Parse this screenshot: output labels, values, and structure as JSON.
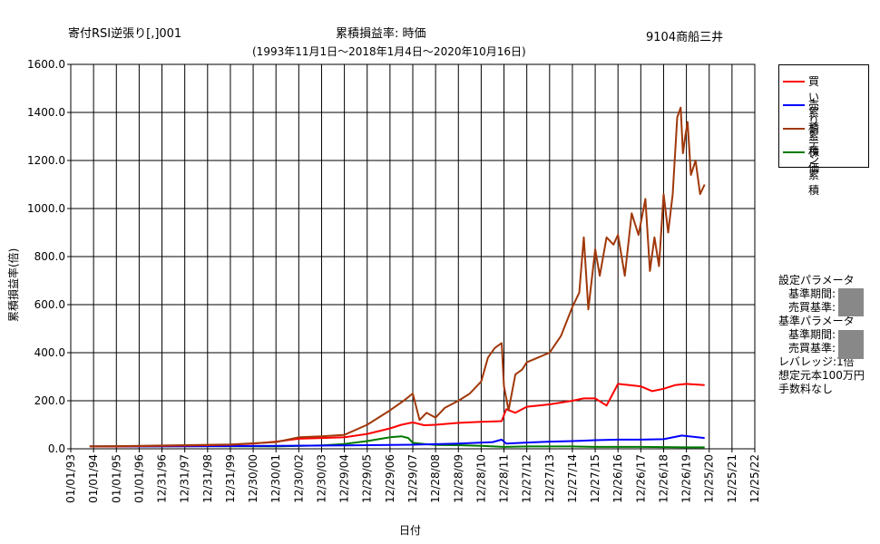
{
  "header": {
    "strategy": "寄付RSI逆張り[,]001",
    "metric": "累積損益率:  時価",
    "stock": "9104商船三井",
    "period": "(1993年11月1日～2018年1月4日～2020年10月16日)"
  },
  "chart_data": {
    "type": "line",
    "title": "累積損益率:  時価",
    "xlabel": "日付",
    "ylabel": "累積損益率(倍)",
    "ylim": [
      0,
      1600
    ],
    "y_ticks": [
      "0.0",
      "200.0",
      "400.0",
      "600.0",
      "800.0",
      "1000.0",
      "1200.0",
      "1400.0",
      "1600.0"
    ],
    "x_ticks": [
      "01/01/93",
      "01/01/94",
      "01/01/95",
      "01/01/96",
      "12/31/96",
      "12/31/97",
      "12/31/98",
      "12/31/99",
      "12/30/00",
      "12/30/01",
      "12/30/02",
      "12/30/03",
      "12/29/04",
      "12/29/05",
      "12/29/06",
      "12/29/07",
      "12/28/08",
      "12/28/09",
      "12/28/10",
      "12/28/11",
      "12/27/12",
      "12/27/13",
      "12/27/14",
      "12/27/15",
      "12/26/16",
      "12/26/17",
      "12/26/18",
      "12/26/19",
      "12/25/20",
      "12/25/21",
      "12/25/22"
    ],
    "grid": true,
    "legend_position": "right",
    "series": [
      {
        "name": "買い累積",
        "color": "#ff0000",
        "x": [
          1993.83,
          1995,
          1997,
          1999,
          2000,
          2001,
          2002,
          2003,
          2004,
          2005,
          2006,
          2007,
          2007.5,
          2008,
          2008.5,
          2009,
          2010,
          2011,
          2011.9,
          2012.1,
          2012.5,
          2013,
          2014,
          2015,
          2015.5,
          2016,
          2016.5,
          2017,
          2017.5,
          2018,
          2018.5,
          2019,
          2019.5,
          2020,
          2020.8
        ],
        "values": [
          10,
          10,
          12,
          15,
          17,
          22,
          30,
          42,
          45,
          48,
          62,
          85,
          100,
          110,
          98,
          100,
          108,
          112,
          115,
          165,
          150,
          175,
          185,
          200,
          210,
          210,
          180,
          270,
          265,
          260,
          240,
          250,
          265,
          270,
          265
        ]
      },
      {
        "name": "売り累積",
        "color": "#0000ff",
        "x": [
          1993.83,
          1996,
          1999,
          2002,
          2005,
          2008,
          2010,
          2011.5,
          2011.9,
          2012.1,
          2013,
          2014,
          2015,
          2016,
          2017,
          2018,
          2019,
          2019.8,
          2020.8
        ],
        "values": [
          10,
          10,
          11,
          12,
          14,
          17,
          22,
          28,
          38,
          22,
          26,
          30,
          32,
          36,
          38,
          38,
          40,
          55,
          45
        ]
      },
      {
        "name": "ドテン累積",
        "color": "#a0380a",
        "x": [
          1993.83,
          1996,
          1998,
          2000,
          2002,
          2003,
          2004,
          2005,
          2006,
          2007,
          2007.6,
          2008,
          2008.3,
          2008.6,
          2009,
          2009.4,
          2010,
          2010.5,
          2011,
          2011.3,
          2011.6,
          2011.9,
          2012.0,
          2012.2,
          2012.5,
          2012.8,
          2013,
          2013.5,
          2014,
          2014.5,
          2015,
          2015.3,
          2015.5,
          2015.7,
          2016,
          2016.2,
          2016.5,
          2016.8,
          2017,
          2017.3,
          2017.6,
          2017.9,
          2018.2,
          2018.4,
          2018.6,
          2018.8,
          2019,
          2019.2,
          2019.4,
          2019.6,
          2019.75,
          2019.85,
          2019.95,
          2020.05,
          2020.2,
          2020.4,
          2020.6,
          2020.8
        ],
        "values": [
          10,
          12,
          15,
          18,
          28,
          48,
          52,
          58,
          100,
          160,
          200,
          230,
          120,
          150,
          130,
          170,
          200,
          230,
          280,
          380,
          420,
          440,
          260,
          160,
          310,
          330,
          360,
          380,
          400,
          470,
          590,
          650,
          880,
          580,
          830,
          720,
          880,
          850,
          890,
          720,
          980,
          890,
          1040,
          740,
          880,
          760,
          1060,
          900,
          1060,
          1380,
          1420,
          1230,
          1300,
          1360,
          1140,
          1200,
          1060,
          1100
        ]
      },
      {
        "name": "株価",
        "color": "#007a00",
        "x": [
          1993.83,
          1996,
          1999,
          2002,
          2004,
          2005,
          2006,
          2006.5,
          2007,
          2007.5,
          2007.8,
          2008,
          2008.5,
          2009,
          2010,
          2011,
          2012,
          2013,
          2014,
          2015,
          2016,
          2017,
          2018,
          2019,
          2020,
          2020.8
        ],
        "values": [
          10,
          10,
          11,
          10,
          14,
          20,
          32,
          40,
          48,
          52,
          45,
          25,
          20,
          16,
          15,
          12,
          8,
          10,
          10,
          10,
          8,
          8,
          8,
          7,
          6,
          6
        ]
      }
    ]
  },
  "legend": {
    "items": [
      {
        "label": "買い累積",
        "color": "#ff0000"
      },
      {
        "label": "売り累積",
        "color": "#0000ff"
      },
      {
        "label": "ドテン累積",
        "color": "#a0380a"
      },
      {
        "label": "株価",
        "color": "#007a00"
      }
    ]
  },
  "params": {
    "setting_header": "設定パラメータ",
    "base_period_1": "基準期間:",
    "trade_criteria_1": "売買基準:",
    "base_header": "基準パラメータ",
    "base_period_2": "基準期間:",
    "trade_criteria_2": "売買基準:",
    "leverage": "レバレッジ:1倍",
    "capital": "想定元本100万円",
    "fees": "手数料なし"
  }
}
